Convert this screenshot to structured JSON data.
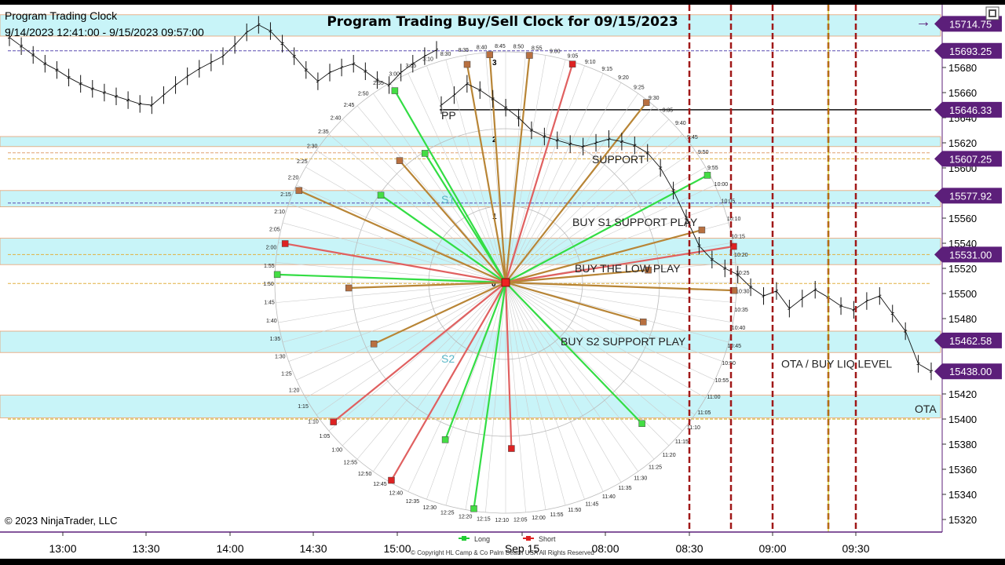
{
  "window": {
    "instrument_label": "Program Trading Clock",
    "date_range": "9/14/2023 12:41:00 - 9/15/2023 09:57:00",
    "copyright": "© 2023 NinjaTrader, LLC",
    "arrow_glyph": "→"
  },
  "chart_data": {
    "type": "line",
    "title": "Program Trading Buy/Sell Clock for 09/15/2023",
    "y_axis": {
      "range": [
        15310,
        15730
      ],
      "ticks": [
        15320,
        15340,
        15360,
        15380,
        15400,
        15420,
        15440,
        15460,
        15480,
        15500,
        15520,
        15540,
        15560,
        15580,
        15600,
        15620,
        15640,
        15660,
        15680
      ]
    },
    "x_axis": {
      "tick_labels": [
        "13:00",
        "13:30",
        "14:00",
        "14:30",
        "15:00",
        "Sep 15",
        "08:00",
        "08:30",
        "09:00",
        "09:30"
      ]
    },
    "price_tags": [
      {
        "value": 15714.75,
        "label": "15714.75",
        "color": "#5c1f7a"
      },
      {
        "value": 15693.25,
        "label": "15693.25",
        "color": "#5c1f7a"
      },
      {
        "value": 15646.33,
        "label": "15646.33",
        "color": "#5c1f7a"
      },
      {
        "value": 15607.25,
        "label": "15607.25",
        "color": "#5c1f7a"
      },
      {
        "value": 15577.92,
        "label": "15577.92",
        "color": "#5c1f7a"
      },
      {
        "value": 15531.0,
        "label": "15531.00",
        "color": "#5c1f7a"
      },
      {
        "value": 15462.58,
        "label": "15462.58",
        "color": "#5c1f7a"
      },
      {
        "value": 15438.0,
        "label": "15438.00",
        "color": "#5c1f7a"
      }
    ],
    "zones": [
      {
        "from": 15705,
        "to": 15722
      },
      {
        "from": 15617,
        "to": 15625
      },
      {
        "from": 15569,
        "to": 15582
      },
      {
        "from": 15523,
        "to": 15544
      },
      {
        "from": 15453,
        "to": 15470
      },
      {
        "from": 15401,
        "to": 15419
      }
    ],
    "levels": [
      {
        "value": 15693.25,
        "color": "#5a4bb0",
        "dash": true
      },
      {
        "value": 15646.33,
        "color": "#111111",
        "dash": false
      },
      {
        "value": 15612,
        "color": "#e0a070",
        "dash": true
      },
      {
        "value": 15607.25,
        "color": "#e0b040",
        "dash": true
      },
      {
        "value": 15572,
        "color": "#5a4bb0",
        "dash": true
      },
      {
        "value": 15531.0,
        "color": "#e0b040",
        "dash": true
      },
      {
        "value": 15508,
        "color": "#e0b040",
        "dash": true
      },
      {
        "value": 15400,
        "color": "#c0a000",
        "dash": true
      }
    ],
    "annotations": [
      {
        "text": "PP",
        "value": 15642,
        "pos": "left"
      },
      {
        "text": "SUPPORT",
        "value": 15607,
        "pos": "mid"
      },
      {
        "text": "S1",
        "value": 15575,
        "pos": "left"
      },
      {
        "text": "BUY S1 SUPPORT PLAY",
        "value": 15557,
        "pos": "mid"
      },
      {
        "text": "BUY THE LOW PLAY",
        "value": 15520,
        "pos": "mid"
      },
      {
        "text": "BUY S2 SUPPORT PLAY",
        "value": 15462,
        "pos": "mid"
      },
      {
        "text": "S2",
        "value": 15448,
        "pos": "left"
      },
      {
        "text": "OTA  / BUY LIQ LEVEL",
        "value": 15444,
        "pos": "right"
      },
      {
        "text": "OTA",
        "value": 15408,
        "pos": "far-right"
      }
    ],
    "session1_closes": [
      15704,
      15697,
      15690,
      15683,
      15678,
      15672,
      15667,
      15663,
      15660,
      15657,
      15654,
      15651,
      15650,
      15658,
      15666,
      15673,
      15679,
      15684,
      15689,
      15698,
      15708,
      15714,
      15709,
      15699,
      15689,
      15678,
      15669,
      15676,
      15680,
      15683,
      15677,
      15670,
      15666,
      15676,
      15683,
      15689,
      15694
    ],
    "session2_closes": [
      15650,
      15658,
      15667,
      15662,
      15655,
      15648,
      15640,
      15630,
      15625,
      15622,
      15619,
      15617,
      15620,
      15623,
      15621,
      15618,
      15612,
      15600,
      15582,
      15560,
      15538,
      15527,
      15520,
      15515,
      15505,
      15498,
      15502,
      15488,
      15496,
      15503,
      15497,
      15490,
      15487,
      15494,
      15498,
      15484,
      15470,
      15444,
      15438
    ],
    "vertical_markers": [
      "08:30",
      "08:45",
      "09:00",
      "09:15",
      "09:30"
    ],
    "clock": {
      "outer_labels": [
        "3:00",
        "3:05",
        "3:10",
        "8:30",
        "8:35",
        "8:40",
        "8:45",
        "8:50",
        "8:55",
        "9:00",
        "9:05",
        "9:10",
        "9:15",
        "9:20",
        "9:25",
        "9:30",
        "9:35",
        "9:40",
        "9:45",
        "9:50",
        "9:55",
        "10:00",
        "10:05",
        "10:10",
        "10:15",
        "10:20",
        "10:25",
        "10:30",
        "10:35",
        "10:40",
        "10:45",
        "10:50",
        "10:55",
        "11:00",
        "11:05",
        "11:10",
        "11:15",
        "11:20",
        "11:25",
        "11:30",
        "11:35",
        "11:40",
        "11:45",
        "11:50",
        "11:55",
        "12:00",
        "12:05",
        "12:10",
        "12:15",
        "12:20",
        "12:25",
        "12:30",
        "12:35",
        "12:40",
        "12:45",
        "12:50",
        "12:55",
        "1:00",
        "1:05",
        "1:10",
        "1:15",
        "1:20",
        "1:25",
        "1:30",
        "1:35",
        "1:40",
        "1:45",
        "1:50",
        "1:55",
        "2:00",
        "2:05",
        "2:10",
        "2:15",
        "2:20",
        "2:25",
        "2:30",
        "2:35",
        "2:40",
        "2:45",
        "2:50",
        "2:55"
      ],
      "ring_labels": [
        "0",
        "1",
        "2",
        "3"
      ],
      "rays": [
        {
          "label": "3:15",
          "r": 0.96,
          "type": "mixed"
        },
        {
          "label": "8:30",
          "r": 0.99,
          "type": "mixed"
        },
        {
          "label": "8:45",
          "r": 0.99,
          "type": "short"
        },
        {
          "label": "9:05",
          "r": 0.99,
          "type": "mixed"
        },
        {
          "label": "9:20",
          "r": 0.99,
          "type": "long"
        },
        {
          "label": "9:35",
          "r": 0.88,
          "type": "mixed"
        },
        {
          "label": "10:10",
          "r": 1.0,
          "type": "short"
        },
        {
          "label": "10:50",
          "r": 0.62,
          "type": "mixed"
        },
        {
          "label": "11:20",
          "r": 0.85,
          "type": "long"
        },
        {
          "label": "11:55",
          "r": 0.72,
          "type": "short"
        },
        {
          "label": "12:35",
          "r": 0.99,
          "type": "short"
        },
        {
          "label": "12:15",
          "r": 0.99,
          "type": "long"
        },
        {
          "label": "12:20",
          "r": 0.0,
          "type": "none"
        },
        {
          "label": "12:45",
          "r": 0.73,
          "type": "long"
        },
        {
          "label": "13:05",
          "r": 0.96,
          "type": "short"
        },
        {
          "label": "1:20",
          "r": 0.63,
          "type": "mixed"
        },
        {
          "label": "1:35",
          "r": 0.99,
          "type": "long"
        },
        {
          "label": "1:35b",
          "r": 0.68,
          "type": "mixed"
        },
        {
          "label": "2:00",
          "r": 0.97,
          "type": "short"
        },
        {
          "label": "2:15",
          "r": 0.98,
          "type": "mixed"
        },
        {
          "label": "2:10",
          "r": 0.66,
          "type": "long"
        },
        {
          "label": "2:40",
          "r": 0.66,
          "type": "long"
        },
        {
          "label": "2:30",
          "r": 0.7,
          "type": "mixed"
        },
        {
          "label": "3:05",
          "r": 0.99,
          "type": "mixed"
        },
        {
          "label": "9:50",
          "r": 0.62,
          "type": "mixed"
        },
        {
          "label": "10:05",
          "r": 0.99,
          "type": "mixed"
        },
        {
          "label": "2:50",
          "r": 0.96,
          "type": "long"
        }
      ]
    },
    "legend": [
      {
        "name": "Long",
        "color": "#22cc33"
      },
      {
        "name": "Short",
        "color": "#dd2222"
      }
    ],
    "footer_copyright": "© Copyright HL Camp & Co  Palm Beach USA All Rights Reserved"
  }
}
